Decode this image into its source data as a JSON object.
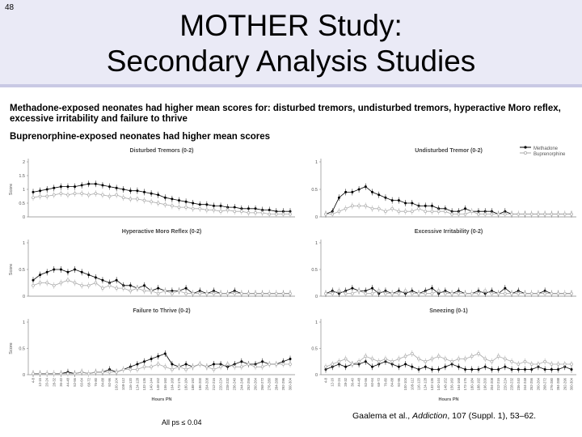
{
  "slide_number": "48",
  "title": {
    "line1": "MOTHER Study:",
    "line2": "Secondary Analysis Studies"
  },
  "bullets": [
    "Methadone-exposed neonates had higher mean scores for: disturbed tremors, undisturbed tremors, hyperactive Moro reflex, excessive irritability and failure to thrive",
    "Buprenorphine-exposed neonates had higher mean scores"
  ],
  "footnote": "All ps ≤ 0.04",
  "citation": {
    "authors": "Gaalema et al., ",
    "journal": "Addiction",
    "details": ", 107 (Suppl. 1), 53–62."
  },
  "colors": {
    "header_bg": "#eaeaf6",
    "methadone": "#000000",
    "buprenorphine": "#aaaaaa"
  },
  "legend": [
    "Methadone",
    "Buprenorphine"
  ],
  "chart_data": [
    {
      "type": "line",
      "title": "Disturbed Tremors (0-2)",
      "ylabel": "Score",
      "ylim": [
        0,
        2
      ],
      "yticks": [
        "0",
        "0.5",
        "1",
        "1.5",
        "2"
      ],
      "series": [
        {
          "name": "Methadone",
          "values": [
            0.9,
            0.95,
            1.0,
            1.05,
            1.1,
            1.1,
            1.1,
            1.15,
            1.2,
            1.2,
            1.15,
            1.1,
            1.05,
            1.0,
            0.95,
            0.95,
            0.9,
            0.85,
            0.8,
            0.7,
            0.65,
            0.6,
            0.55,
            0.5,
            0.45,
            0.45,
            0.4,
            0.4,
            0.35,
            0.35,
            0.3,
            0.3,
            0.3,
            0.25,
            0.25,
            0.2,
            0.2,
            0.2
          ]
        },
        {
          "name": "Buprenorphine",
          "values": [
            0.7,
            0.75,
            0.75,
            0.8,
            0.85,
            0.8,
            0.85,
            0.85,
            0.8,
            0.85,
            0.8,
            0.75,
            0.8,
            0.7,
            0.65,
            0.65,
            0.6,
            0.55,
            0.5,
            0.45,
            0.4,
            0.35,
            0.35,
            0.3,
            0.3,
            0.25,
            0.25,
            0.2,
            0.25,
            0.2,
            0.2,
            0.15,
            0.15,
            0.15,
            0.1,
            0.1,
            0.1,
            0.1
          ]
        }
      ]
    },
    {
      "type": "line",
      "title": "Undisturbed Tremor (0-2)",
      "ylabel": "",
      "ylim": [
        0,
        1
      ],
      "yticks": [
        "0",
        "0.5",
        "1"
      ],
      "series": [
        {
          "name": "Methadone",
          "values": [
            0.05,
            0.1,
            0.35,
            0.45,
            0.45,
            0.5,
            0.55,
            0.45,
            0.4,
            0.35,
            0.3,
            0.3,
            0.25,
            0.25,
            0.2,
            0.2,
            0.2,
            0.15,
            0.15,
            0.1,
            0.1,
            0.15,
            0.1,
            0.1,
            0.1,
            0.1,
            0.05,
            0.1,
            0.05,
            0.05,
            0.05,
            0.05,
            0.05,
            0.05,
            0.05,
            0.05,
            0.05,
            0.05
          ]
        },
        {
          "name": "Buprenorphine",
          "values": [
            0.05,
            0.05,
            0.1,
            0.15,
            0.2,
            0.2,
            0.2,
            0.15,
            0.15,
            0.1,
            0.15,
            0.1,
            0.1,
            0.1,
            0.15,
            0.1,
            0.1,
            0.1,
            0.1,
            0.05,
            0.05,
            0.05,
            0.1,
            0.05,
            0.05,
            0.05,
            0.05,
            0.05,
            0.05,
            0.05,
            0.05,
            0.05,
            0.05,
            0.05,
            0.05,
            0.05,
            0.05,
            0.05
          ]
        }
      ]
    },
    {
      "type": "line",
      "title": "Hyperactive Moro Reflex (0-2)",
      "ylabel": "Score",
      "ylim": [
        0,
        1
      ],
      "yticks": [
        "0",
        "0.5",
        "1"
      ],
      "series": [
        {
          "name": "Methadone",
          "values": [
            0.3,
            0.4,
            0.45,
            0.5,
            0.5,
            0.45,
            0.5,
            0.45,
            0.4,
            0.35,
            0.3,
            0.25,
            0.3,
            0.2,
            0.2,
            0.15,
            0.2,
            0.1,
            0.15,
            0.1,
            0.1,
            0.1,
            0.15,
            0.05,
            0.1,
            0.05,
            0.1,
            0.05,
            0.05,
            0.1,
            0.05,
            0.05,
            0.05,
            0.05,
            0.05,
            0.05,
            0.05,
            0.05
          ]
        },
        {
          "name": "Buprenorphine",
          "values": [
            0.2,
            0.25,
            0.25,
            0.2,
            0.25,
            0.3,
            0.25,
            0.2,
            0.2,
            0.25,
            0.15,
            0.2,
            0.15,
            0.15,
            0.1,
            0.15,
            0.1,
            0.1,
            0.05,
            0.1,
            0.05,
            0.1,
            0.05,
            0.05,
            0.05,
            0.05,
            0.05,
            0.05,
            0.05,
            0.05,
            0.05,
            0.05,
            0.05,
            0.05,
            0.05,
            0.05,
            0.05,
            0.05
          ]
        }
      ]
    },
    {
      "type": "line",
      "title": "Excessive Irritability (0-2)",
      "ylabel": "",
      "ylim": [
        0,
        1
      ],
      "yticks": [
        "0",
        "0.5",
        "1"
      ],
      "series": [
        {
          "name": "Methadone",
          "values": [
            0.05,
            0.1,
            0.05,
            0.1,
            0.15,
            0.1,
            0.1,
            0.15,
            0.05,
            0.1,
            0.05,
            0.1,
            0.05,
            0.1,
            0.05,
            0.1,
            0.15,
            0.05,
            0.1,
            0.05,
            0.1,
            0.05,
            0.05,
            0.1,
            0.05,
            0.1,
            0.05,
            0.15,
            0.05,
            0.1,
            0.05,
            0.05,
            0.05,
            0.1,
            0.05,
            0.05,
            0.05,
            0.05
          ]
        },
        {
          "name": "Buprenorphine",
          "values": [
            0.05,
            0.05,
            0.1,
            0.05,
            0.05,
            0.1,
            0.05,
            0.05,
            0.1,
            0.05,
            0.05,
            0.05,
            0.1,
            0.05,
            0.05,
            0.05,
            0.05,
            0.1,
            0.05,
            0.05,
            0.05,
            0.05,
            0.05,
            0.05,
            0.1,
            0.05,
            0.05,
            0.05,
            0.05,
            0.05,
            0.05,
            0.05,
            0.05,
            0.05,
            0.05,
            0.05,
            0.05,
            0.05
          ]
        }
      ]
    },
    {
      "type": "line",
      "title": "Failure to Thrive (0-2)",
      "ylabel": "Score",
      "ylim": [
        0,
        1
      ],
      "yticks": [
        "0",
        "0.5",
        "1"
      ],
      "xlabel": "Hours PN",
      "series": [
        {
          "name": "Methadone",
          "values": [
            0.02,
            0.02,
            0.02,
            0.02,
            0.02,
            0.05,
            0.02,
            0.05,
            0.02,
            0.05,
            0.05,
            0.1,
            0.05,
            0.1,
            0.15,
            0.2,
            0.25,
            0.3,
            0.35,
            0.4,
            0.2,
            0.15,
            0.2,
            0.15,
            0.2,
            0.15,
            0.2,
            0.2,
            0.15,
            0.2,
            0.25,
            0.2,
            0.2,
            0.25,
            0.2,
            0.2,
            0.25,
            0.3
          ]
        },
        {
          "name": "Buprenorphine",
          "values": [
            0.02,
            0.02,
            0.02,
            0.02,
            0.02,
            0.02,
            0.02,
            0.05,
            0.02,
            0.05,
            0.05,
            0.05,
            0.05,
            0.1,
            0.1,
            0.1,
            0.15,
            0.15,
            0.2,
            0.15,
            0.1,
            0.15,
            0.1,
            0.15,
            0.2,
            0.15,
            0.1,
            0.15,
            0.2,
            0.15,
            0.15,
            0.2,
            0.15,
            0.15,
            0.2,
            0.2,
            0.2,
            0.2
          ]
        }
      ]
    },
    {
      "type": "line",
      "title": "Sneezing (0-1)",
      "ylabel": "",
      "ylim": [
        0,
        1
      ],
      "yticks": [
        "0",
        "0.5",
        "1"
      ],
      "xlabel": "Hours PN",
      "series": [
        {
          "name": "Methadone",
          "values": [
            0.1,
            0.15,
            0.2,
            0.15,
            0.2,
            0.2,
            0.25,
            0.15,
            0.2,
            0.25,
            0.2,
            0.15,
            0.2,
            0.15,
            0.1,
            0.15,
            0.1,
            0.1,
            0.15,
            0.2,
            0.15,
            0.1,
            0.1,
            0.1,
            0.15,
            0.1,
            0.1,
            0.15,
            0.1,
            0.1,
            0.1,
            0.1,
            0.15,
            0.1,
            0.1,
            0.1,
            0.15,
            0.1
          ]
        },
        {
          "name": "Buprenorphine",
          "values": [
            0.15,
            0.2,
            0.25,
            0.3,
            0.2,
            0.25,
            0.35,
            0.3,
            0.25,
            0.3,
            0.25,
            0.3,
            0.35,
            0.4,
            0.3,
            0.25,
            0.3,
            0.35,
            0.3,
            0.25,
            0.3,
            0.3,
            0.35,
            0.4,
            0.3,
            0.25,
            0.35,
            0.3,
            0.25,
            0.2,
            0.25,
            0.2,
            0.2,
            0.25,
            0.2,
            0.2,
            0.2,
            0.2
          ]
        }
      ]
    }
  ]
}
